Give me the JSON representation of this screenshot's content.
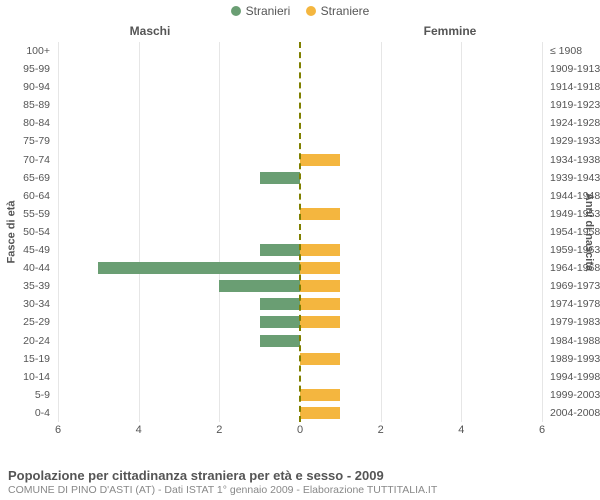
{
  "legend": {
    "male": {
      "label": "Stranieri",
      "color": "#6a9e73"
    },
    "female": {
      "label": "Straniere",
      "color": "#f4b63f"
    }
  },
  "panel_titles": {
    "left": "Maschi",
    "right": "Femmine"
  },
  "axis_titles": {
    "left": "Fasce di età",
    "right": "Anni di nascita"
  },
  "x_axis": {
    "max": 6,
    "ticks_left": [
      6,
      4,
      2,
      0
    ],
    "ticks_right": [
      0,
      2,
      4,
      6
    ]
  },
  "colors": {
    "background": "#ffffff",
    "grid": "#e6e6e6",
    "center_line": "#808000",
    "text": "#555555",
    "subtext": "#888888"
  },
  "rows": [
    {
      "age": "100+",
      "birth": "≤ 1908",
      "m": 0,
      "f": 0
    },
    {
      "age": "95-99",
      "birth": "1909-1913",
      "m": 0,
      "f": 0
    },
    {
      "age": "90-94",
      "birth": "1914-1918",
      "m": 0,
      "f": 0
    },
    {
      "age": "85-89",
      "birth": "1919-1923",
      "m": 0,
      "f": 0
    },
    {
      "age": "80-84",
      "birth": "1924-1928",
      "m": 0,
      "f": 0
    },
    {
      "age": "75-79",
      "birth": "1929-1933",
      "m": 0,
      "f": 0
    },
    {
      "age": "70-74",
      "birth": "1934-1938",
      "m": 0,
      "f": 1
    },
    {
      "age": "65-69",
      "birth": "1939-1943",
      "m": 1,
      "f": 0
    },
    {
      "age": "60-64",
      "birth": "1944-1948",
      "m": 0,
      "f": 0
    },
    {
      "age": "55-59",
      "birth": "1949-1953",
      "m": 0,
      "f": 1
    },
    {
      "age": "50-54",
      "birth": "1954-1958",
      "m": 0,
      "f": 0
    },
    {
      "age": "45-49",
      "birth": "1959-1963",
      "m": 1,
      "f": 1
    },
    {
      "age": "40-44",
      "birth": "1964-1968",
      "m": 5,
      "f": 1
    },
    {
      "age": "35-39",
      "birth": "1969-1973",
      "m": 2,
      "f": 1
    },
    {
      "age": "30-34",
      "birth": "1974-1978",
      "m": 1,
      "f": 1
    },
    {
      "age": "25-29",
      "birth": "1979-1983",
      "m": 1,
      "f": 1
    },
    {
      "age": "20-24",
      "birth": "1984-1988",
      "m": 1,
      "f": 0
    },
    {
      "age": "15-19",
      "birth": "1989-1993",
      "m": 0,
      "f": 1
    },
    {
      "age": "10-14",
      "birth": "1994-1998",
      "m": 0,
      "f": 0
    },
    {
      "age": "5-9",
      "birth": "1999-2003",
      "m": 0,
      "f": 1
    },
    {
      "age": "0-4",
      "birth": "2004-2008",
      "m": 0,
      "f": 1
    }
  ],
  "footer": {
    "title": "Popolazione per cittadinanza straniera per età e sesso - 2009",
    "subtitle": "COMUNE DI PINO D'ASTI (AT) - Dati ISTAT 1° gennaio 2009 - Elaborazione TUTTITALIA.IT"
  },
  "chart_type": "population-pyramid"
}
